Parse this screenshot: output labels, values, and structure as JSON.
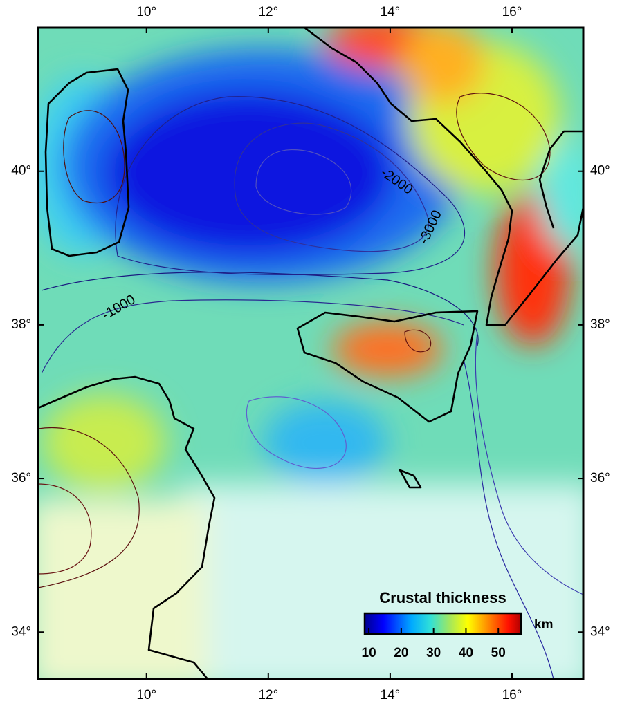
{
  "map": {
    "lon_range": [
      8.22,
      17.17
    ],
    "lat_range": [
      33.39,
      41.87
    ],
    "lon_ticks": [
      {
        "value": 10,
        "label": "10°"
      },
      {
        "value": 12,
        "label": "12°"
      },
      {
        "value": 14,
        "label": "14°"
      },
      {
        "value": 16,
        "label": "16°"
      }
    ],
    "lat_ticks": [
      {
        "value": 34,
        "label": "34°"
      },
      {
        "value": 36,
        "label": "36°"
      },
      {
        "value": 38,
        "label": "38°"
      },
      {
        "value": 40,
        "label": "40°"
      }
    ],
    "contour_labels": [
      "-1000",
      "-2000",
      "-3000"
    ],
    "colorbar": {
      "title": "Crustal thickness",
      "unit": "km",
      "range": [
        8.7,
        57
      ],
      "ticks": [
        10,
        20,
        30,
        40,
        50
      ]
    }
  }
}
